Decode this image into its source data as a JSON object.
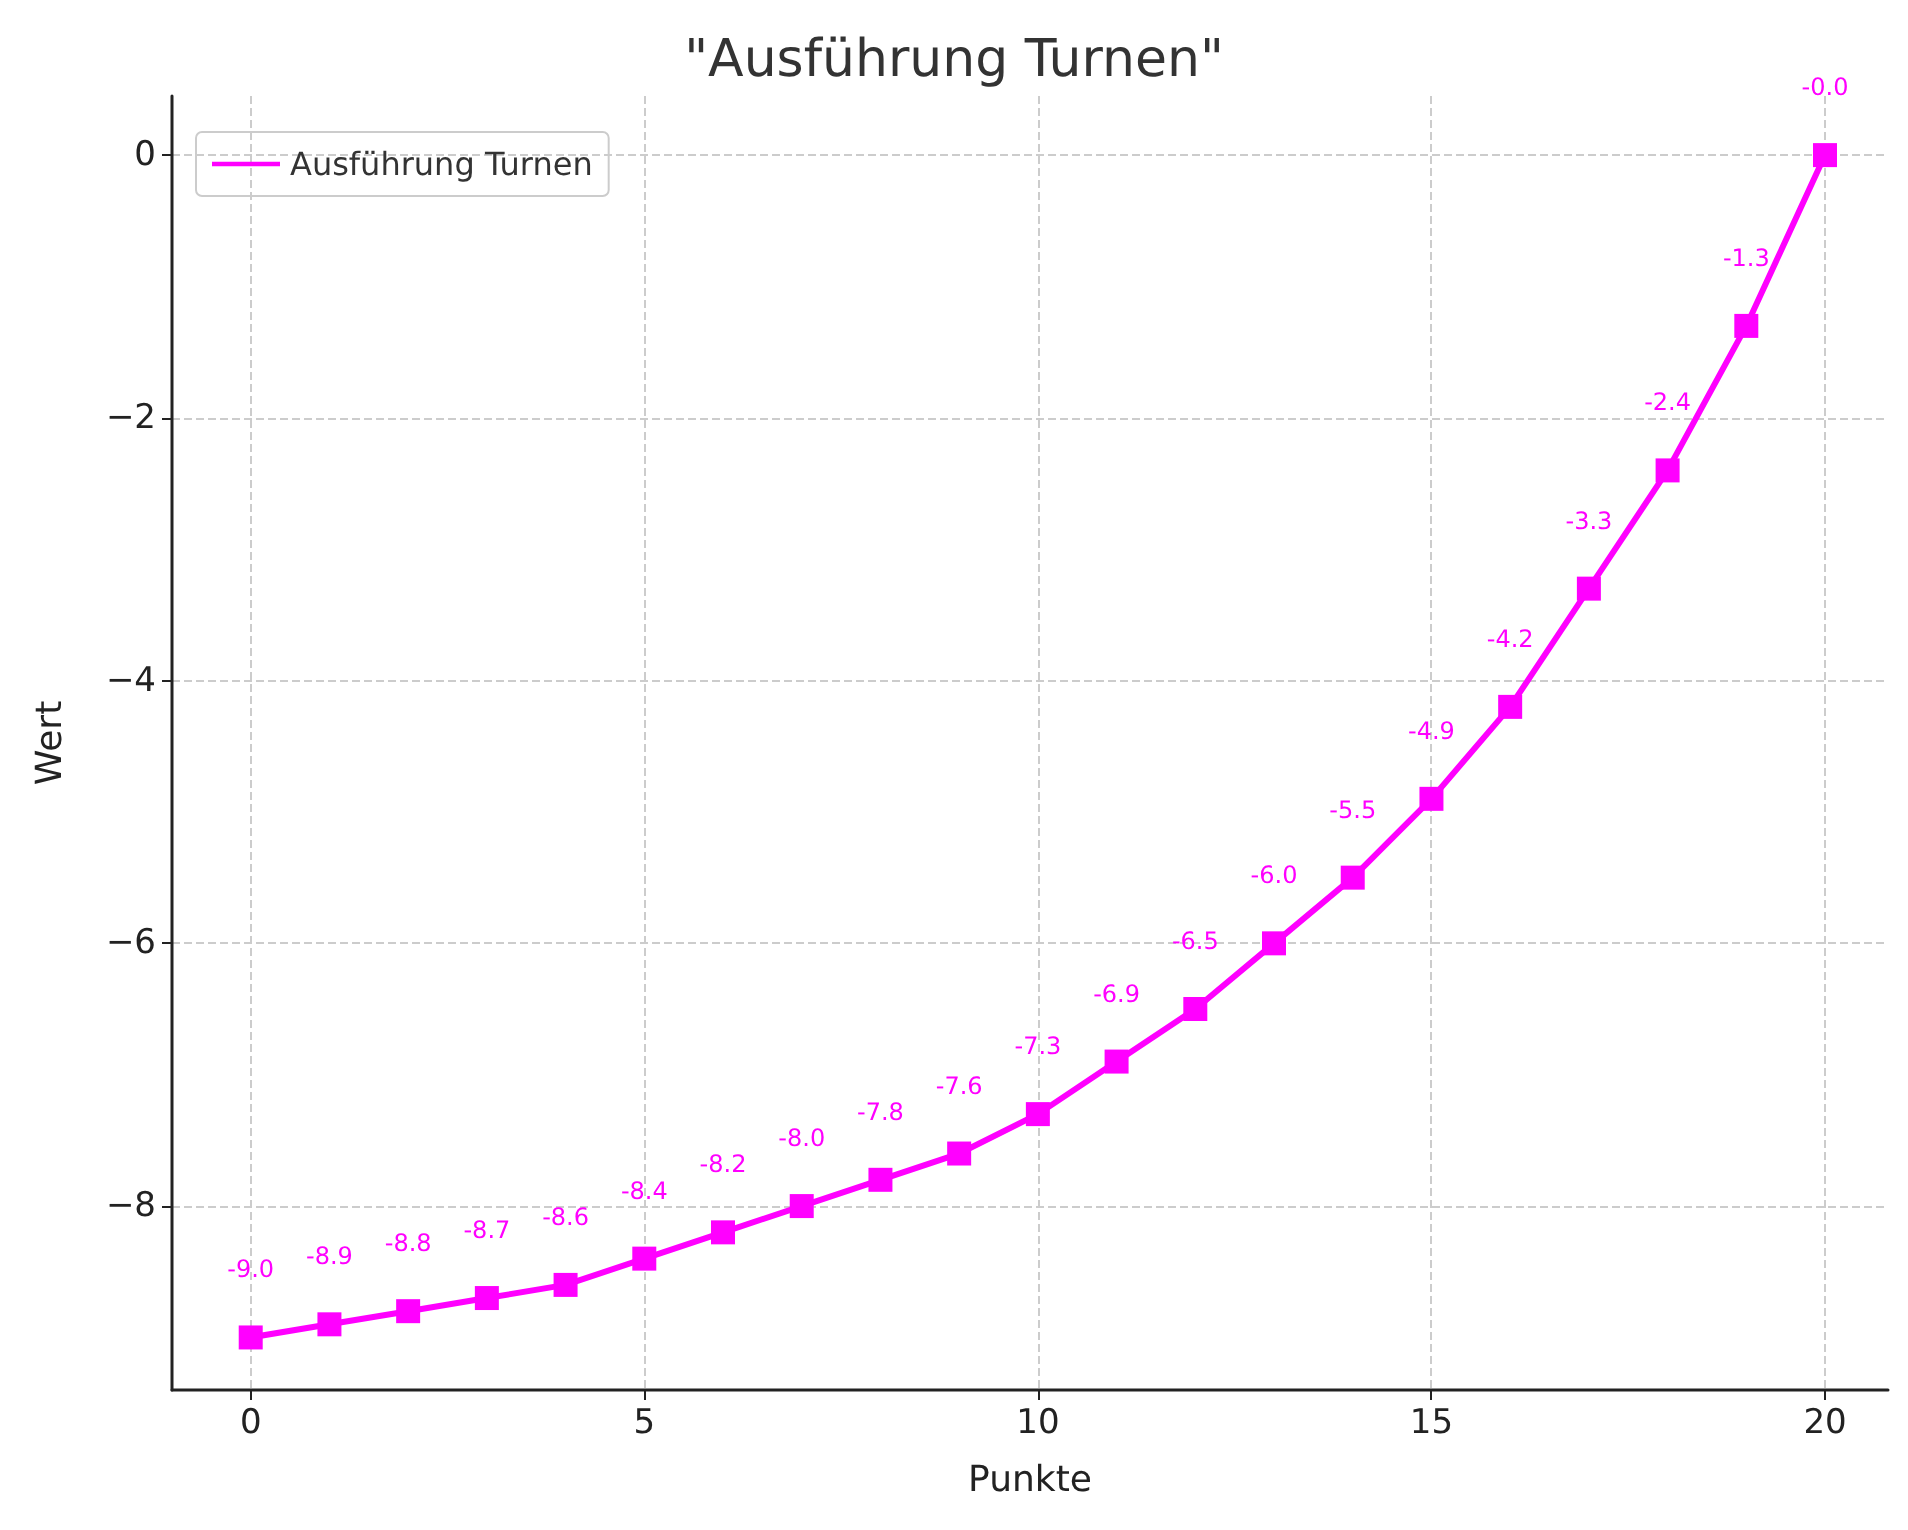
{
  "chart_data": {
    "type": "line",
    "title": "\"Ausführung Turnen\"",
    "xlabel": "Punkte",
    "ylabel": "Wert",
    "x": [
      0,
      1,
      2,
      3,
      4,
      5,
      6,
      7,
      8,
      9,
      10,
      11,
      12,
      13,
      14,
      15,
      16,
      17,
      18,
      19,
      20
    ],
    "series": [
      {
        "name": "Ausführung Turnen",
        "color": "#ff00ff",
        "values": [
          -9.0,
          -8.9,
          -8.8,
          -8.7,
          -8.6,
          -8.4,
          -8.2,
          -8.0,
          -7.8,
          -7.6,
          -7.3,
          -6.9,
          -6.5,
          -6.0,
          -5.5,
          -4.9,
          -4.2,
          -3.3,
          -2.4,
          -1.3,
          0
        ],
        "value_labels": [
          "-9.0",
          "-8.9",
          "-8.8",
          "-8.7",
          "-8.6",
          "-8.4",
          "-8.2",
          "-8.0",
          "-7.8",
          "-7.6",
          "-7.3",
          "-6.9",
          "-6.5",
          "-6.0",
          "-5.5",
          "-4.9",
          "-4.2",
          "-3.3",
          "-2.4",
          "-1.3",
          "-0.0"
        ]
      }
    ],
    "xlim": [
      -1,
      20.8
    ],
    "ylim": [
      -9.4,
      0.45
    ],
    "xticks": [
      0,
      5,
      10,
      15,
      20
    ],
    "yticks": [
      {
        "value": -8,
        "label": "−8"
      },
      {
        "value": -6,
        "label": "−6"
      },
      {
        "value": -4,
        "label": "−4"
      },
      {
        "value": -2,
        "label": "−2"
      },
      0
    ],
    "grid": true,
    "legend": "top left",
    "marker": "square",
    "line_style": "solid"
  }
}
